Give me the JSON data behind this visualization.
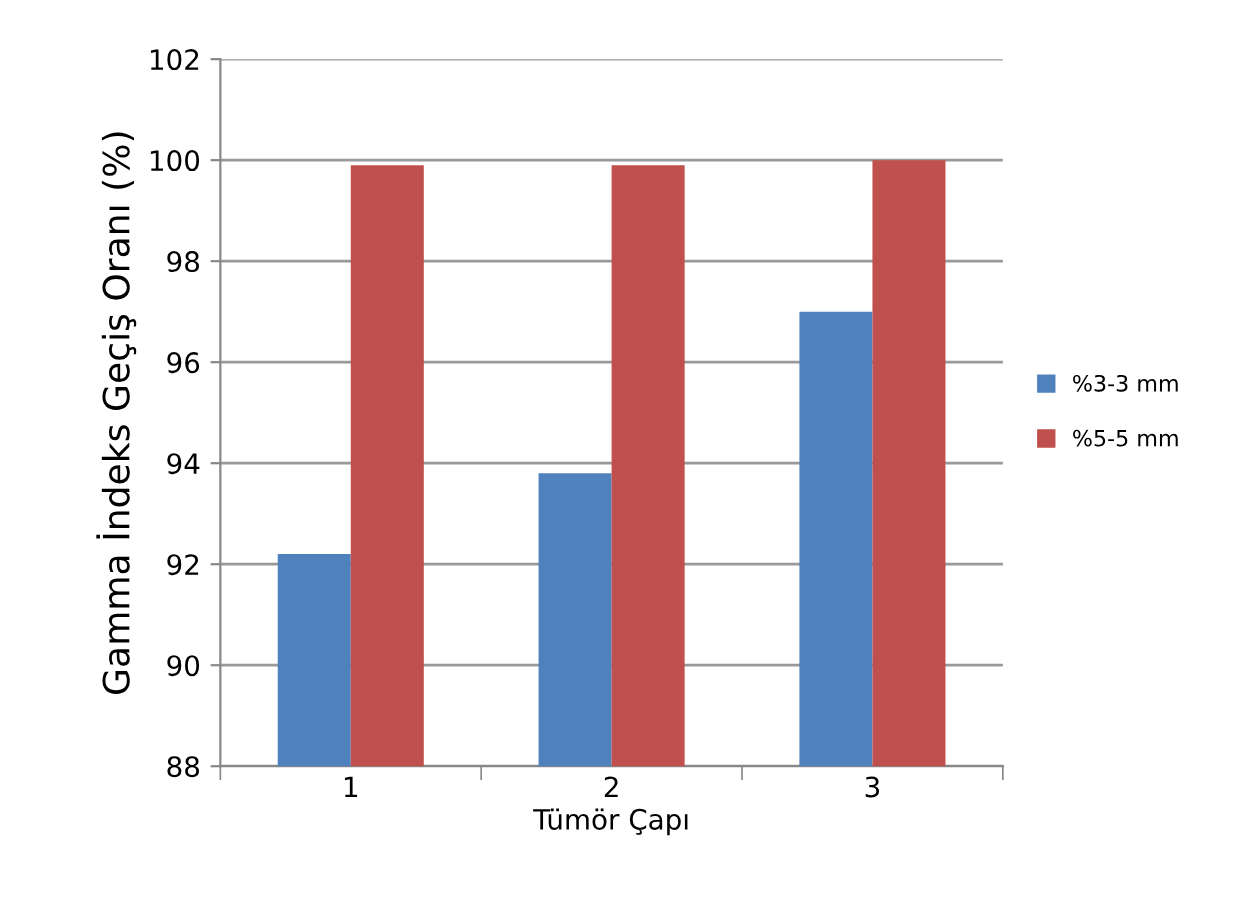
{
  "chart_data": {
    "type": "bar",
    "xlabel": "Tümör Çapı",
    "ylabel": "Gamma İndeks Geçiş Oranı (%)",
    "categories": [
      "1",
      "2",
      "3"
    ],
    "series": [
      {
        "name": "%3-3 mm",
        "color": "#4f81bd",
        "values": [
          92.2,
          93.8,
          97.0
        ]
      },
      {
        "name": "%5-5 mm",
        "color": "#c0504d",
        "values": [
          99.9,
          99.9,
          100.0
        ]
      }
    ],
    "ylim": [
      88,
      102
    ],
    "yticks": [
      88,
      90,
      92,
      94,
      96,
      98,
      100,
      102
    ],
    "grid": "y",
    "legend": "right"
  }
}
